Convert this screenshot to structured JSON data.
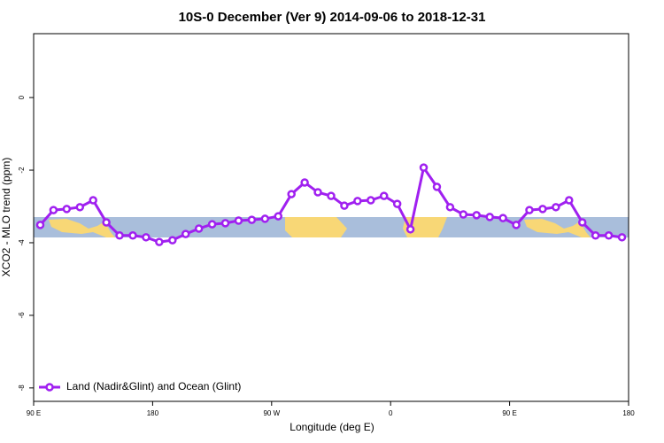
{
  "chart_data": {
    "type": "line",
    "title": "10S-0 December (Ver 9)   2014-09-06 to 2018-12-31",
    "xlabel": "Longitude (deg E)",
    "ylabel": "XCO2 - MLO trend (ppm)",
    "xlim": [
      90,
      540
    ],
    "ylim": [
      -8.37,
      1.76
    ],
    "xticks": [
      {
        "value": 90,
        "label": "90 E"
      },
      {
        "value": 180,
        "label": "180"
      },
      {
        "value": 270,
        "label": "90 W"
      },
      {
        "value": 360,
        "label": "0"
      },
      {
        "value": 450,
        "label": "90 E"
      },
      {
        "value": 540,
        "label": "180"
      }
    ],
    "yticks": [
      0,
      -2,
      -4,
      -6,
      -8
    ],
    "legend": "bottom-left",
    "x": [
      95,
      105,
      115,
      125,
      135,
      145,
      155,
      165,
      175,
      185,
      195,
      205,
      215,
      225,
      235,
      245,
      255,
      265,
      275,
      285,
      295,
      305,
      315,
      325,
      335,
      345,
      355,
      365,
      375,
      385,
      395,
      405,
      415,
      425,
      435,
      445,
      455,
      465,
      475,
      485,
      495,
      505,
      515,
      525,
      535
    ],
    "series": [
      {
        "name": "Land (Nadir&Glint) and Ocean (Glint)",
        "color": "#a020f0",
        "values": [
          -3.51,
          -3.1,
          -3.07,
          -3.02,
          -2.83,
          -3.44,
          -3.8,
          -3.8,
          -3.85,
          -3.98,
          -3.93,
          -3.76,
          -3.61,
          -3.49,
          -3.46,
          -3.39,
          -3.37,
          -3.34,
          -3.27,
          -2.66,
          -2.34,
          -2.61,
          -2.71,
          -2.98,
          -2.85,
          -2.83,
          -2.71,
          -2.93,
          -3.63,
          -1.93,
          -2.46,
          -3.02,
          -3.22,
          -3.24,
          -3.29,
          -3.32,
          -3.51,
          -3.1,
          -3.07,
          -3.02,
          -2.83,
          -3.44,
          -3.8,
          -3.8,
          -3.85
        ]
      }
    ]
  }
}
